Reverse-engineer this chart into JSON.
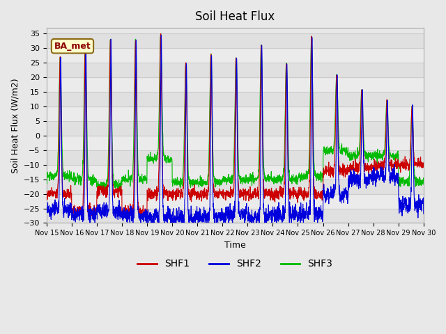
{
  "title": "Soil Heat Flux",
  "ylabel": "Soil Heat Flux (W/m2)",
  "xlabel": "Time",
  "ylim": [
    -30,
    37
  ],
  "yticks": [
    -30,
    -25,
    -20,
    -15,
    -10,
    -5,
    0,
    5,
    10,
    15,
    20,
    25,
    30,
    35
  ],
  "colors": {
    "SHF1": "#cc0000",
    "SHF2": "#0000dd",
    "SHF3": "#00bb00"
  },
  "legend_label": "BA_met",
  "bg_color": "#e8e8e8",
  "plot_bg_color": "#e8e8e8",
  "n_days": 15,
  "start_day": 15,
  "linewidth": 0.8,
  "day_peaks": [
    27,
    32,
    33,
    33,
    35,
    25,
    28,
    27,
    31,
    25,
    34,
    21,
    16,
    12,
    10
  ],
  "day_troughs_shf1": [
    -20,
    -26,
    -19,
    -26,
    -20,
    -20,
    -20,
    -20,
    -20,
    -20,
    -20,
    -12,
    -11,
    -10,
    -10
  ],
  "day_troughs_shf2": [
    -25,
    -27,
    -26,
    -27,
    -28,
    -28,
    -28,
    -27,
    -28,
    -27,
    -27,
    -20,
    -15,
    -14,
    -24
  ],
  "day_troughs_shf3": [
    -14,
    -15,
    -17,
    -15,
    -8,
    -16,
    -16,
    -15,
    -15,
    -15,
    -14,
    -5,
    -7,
    -7,
    -16
  ]
}
